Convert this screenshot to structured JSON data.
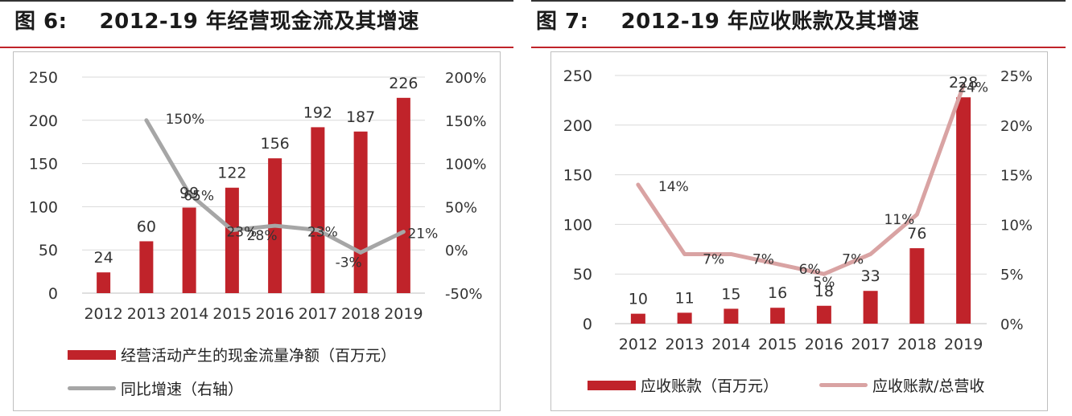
{
  "figures": [
    {
      "fig_label": "图 6:",
      "title": "2012-19 年经营现金流及其增速",
      "legend_bar": "经营活动产生的现金流量净额（百万元）",
      "legend_line": "同比增速（右轴）",
      "colors": {
        "bar": "#c0232a",
        "line": "#a6a6a6"
      }
    },
    {
      "fig_label": "图 7:",
      "title": "2012-19 年应收账款及其增速",
      "legend_bar": "应收账款（百万元）",
      "legend_line": "应收账款/总营收",
      "colors": {
        "bar": "#c0232a",
        "line": "#d9a3a3"
      }
    }
  ],
  "chart_data": [
    {
      "type": "bar",
      "categories": [
        "2012",
        "2013",
        "2014",
        "2015",
        "2016",
        "2017",
        "2018",
        "2019"
      ],
      "series": [
        {
          "name": "经营活动产生的现金流量净额（百万元）",
          "values": [
            24,
            60,
            99,
            122,
            156,
            192,
            187,
            226
          ],
          "labels": [
            "24",
            "60",
            "99",
            "122",
            "156",
            "192",
            "187",
            "226"
          ]
        },
        {
          "name": "同比增速（右轴）",
          "type": "line",
          "axis": "right",
          "values": [
            null,
            150,
            65,
            23,
            28,
            23,
            -3,
            21
          ],
          "labels": [
            "",
            "150%",
            "65%",
            "23%",
            "28%",
            "23%",
            "-3%",
            "21%"
          ]
        }
      ],
      "ylim": [
        0,
        250
      ],
      "yticks": [
        "0",
        "50",
        "100",
        "150",
        "200",
        "250"
      ],
      "y2lim": [
        -50,
        200
      ],
      "y2ticks": [
        "-50%",
        "0%",
        "50%",
        "100%",
        "150%",
        "200%"
      ],
      "grid": true,
      "legend": "bottom-left"
    },
    {
      "type": "bar",
      "categories": [
        "2012",
        "2013",
        "2014",
        "2015",
        "2016",
        "2017",
        "2018",
        "2019"
      ],
      "series": [
        {
          "name": "应收账款（百万元）",
          "values": [
            10,
            11,
            15,
            16,
            18,
            33,
            76,
            228
          ],
          "labels": [
            "10",
            "11",
            "15",
            "16",
            "18",
            "33",
            "76",
            "228"
          ]
        },
        {
          "name": "应收账款/总营收",
          "type": "line",
          "axis": "right",
          "values": [
            14,
            7,
            7,
            6,
            5,
            7,
            11,
            24
          ],
          "labels": [
            "14%",
            "7%",
            "7%",
            "6%",
            "5%",
            "7%",
            "11%",
            "24%"
          ]
        }
      ],
      "ylim": [
        0,
        250
      ],
      "yticks": [
        "0",
        "50",
        "100",
        "150",
        "200",
        "250"
      ],
      "y2lim": [
        0,
        25
      ],
      "y2ticks": [
        "0%",
        "5%",
        "10%",
        "15%",
        "20%",
        "25%"
      ],
      "grid": true,
      "legend": "bottom"
    }
  ]
}
